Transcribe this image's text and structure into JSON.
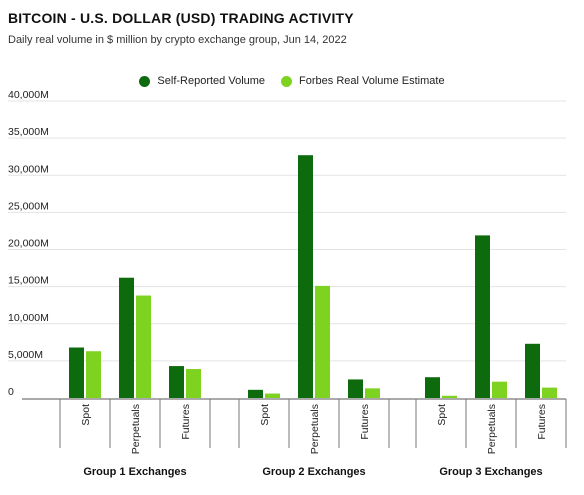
{
  "chart_data": {
    "type": "bar",
    "title": "BITCOIN - U.S. DOLLAR (USD) TRADING ACTIVITY",
    "subtitle": "Daily real volume in $ million by crypto exchange group, Jun 14, 2022",
    "xlabel": "",
    "ylabel": "",
    "ylim": [
      0,
      40000
    ],
    "yticks": [
      0,
      5000,
      10000,
      15000,
      20000,
      25000,
      30000,
      35000,
      40000
    ],
    "ytick_labels": [
      "0",
      "5,000M",
      "10,000M",
      "15,000M",
      "20,000M",
      "25,000M",
      "30,000M",
      "35,000M",
      "40,000M"
    ],
    "grid": true,
    "legend_position": "top-center",
    "groups": [
      {
        "label": "Group 1 Exchanges",
        "categories": [
          "Spot",
          "Perpetuals",
          "Futures"
        ]
      },
      {
        "label": "Group 2 Exchanges",
        "categories": [
          "Spot",
          "Perpetuals",
          "Futures"
        ]
      },
      {
        "label": "Group 3 Exchanges",
        "categories": [
          "Spot",
          "Perpetuals",
          "Futures"
        ]
      }
    ],
    "series": [
      {
        "name": "Self-Reported Volume",
        "color": "#0d6b0d",
        "values": [
          6800,
          16200,
          4300,
          1100,
          32700,
          2500,
          2800,
          21900,
          7300
        ]
      },
      {
        "name": "Forbes Real Volume Estimate",
        "color": "#7ed321",
        "values": [
          6300,
          13800,
          3900,
          600,
          15100,
          1300,
          300,
          2200,
          1400
        ]
      }
    ]
  }
}
